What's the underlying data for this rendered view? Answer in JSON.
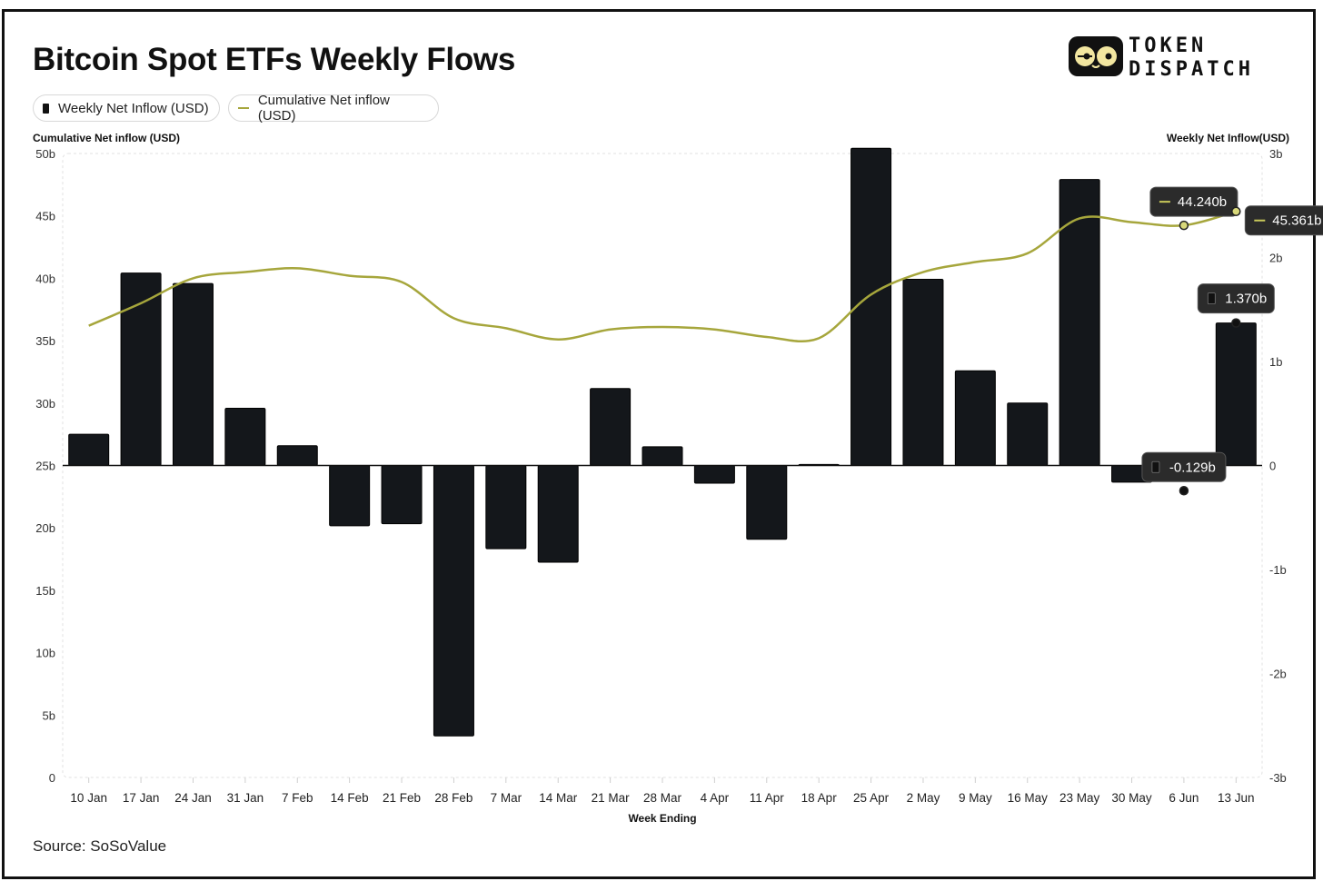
{
  "title": "Bitcoin Spot ETFs Weekly Flows",
  "logo": {
    "line1": "TOKEN",
    "line2": "DISPATCH"
  },
  "legend": [
    {
      "label": "Weekly Net Inflow (USD)",
      "type": "bar"
    },
    {
      "label": "Cumulative Net inflow (USD)",
      "type": "line"
    }
  ],
  "source": "Source: SoSoValue",
  "colors": {
    "bar": "#14171b",
    "line": "#a6a63c",
    "tooltip_bg": "#2b2b2b"
  },
  "chart_data": {
    "type": "bar",
    "title": "Bitcoin Spot ETFs Weekly Flows",
    "xlabel": "Week Ending",
    "ylabel_left": "Cumulative Net inflow (USD)",
    "ylabel_right": "Weekly Net Inflow(USD)",
    "categories": [
      "10 Jan",
      "17 Jan",
      "24 Jan",
      "31 Jan",
      "7 Feb",
      "14 Feb",
      "21 Feb",
      "28 Feb",
      "7 Mar",
      "14 Mar",
      "21 Mar",
      "28 Mar",
      "4 Apr",
      "11 Apr",
      "18 Apr",
      "25 Apr",
      "2 May",
      "9 May",
      "16 May",
      "23 May",
      "30 May",
      "6 Jun",
      "13 Jun"
    ],
    "left_axis": {
      "ylim": [
        0,
        50
      ],
      "ticks": [
        0,
        5,
        10,
        15,
        20,
        25,
        30,
        35,
        40,
        45,
        50
      ],
      "tick_labels": [
        "0",
        "5b",
        "10b",
        "15b",
        "20b",
        "25b",
        "30b",
        "35b",
        "40b",
        "45b",
        "50b"
      ]
    },
    "right_axis": {
      "ylim": [
        -3,
        3
      ],
      "ticks": [
        -3,
        -2,
        -1,
        0,
        1,
        2,
        3
      ],
      "tick_labels": [
        "-3b",
        "-2b",
        "-1b",
        "0",
        "1b",
        "2b",
        "3b"
      ]
    },
    "series": [
      {
        "name": "Weekly Net Inflow (USD)",
        "type": "bar",
        "axis": "right",
        "values": [
          0.3,
          1.85,
          1.75,
          0.55,
          0.19,
          -0.58,
          -0.56,
          -2.6,
          -0.8,
          -0.93,
          0.74,
          0.18,
          -0.17,
          -0.71,
          0.01,
          3.05,
          1.79,
          0.91,
          0.6,
          2.75,
          -0.16,
          -0.129,
          1.37
        ]
      },
      {
        "name": "Cumulative Net inflow (USD)",
        "type": "line",
        "axis": "left",
        "values": [
          36.2,
          38.0,
          40.0,
          40.5,
          40.8,
          40.2,
          39.7,
          36.8,
          36.0,
          35.1,
          35.9,
          36.1,
          35.9,
          35.3,
          35.2,
          38.7,
          40.5,
          41.3,
          42.0,
          44.8,
          44.5,
          44.24,
          45.361
        ]
      }
    ],
    "tooltips": [
      {
        "label": "44.240b",
        "series": "line",
        "index": 21
      },
      {
        "label": "45.361b",
        "series": "line",
        "index": 22
      },
      {
        "label": "1.370b",
        "series": "bar",
        "index": 22
      },
      {
        "label": "-0.129b",
        "series": "bar",
        "index": 21
      }
    ],
    "grid": false
  }
}
